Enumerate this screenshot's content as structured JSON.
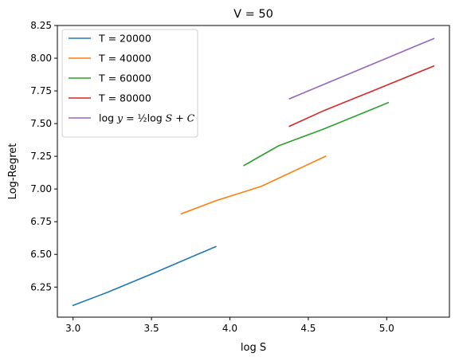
{
  "chart_data": {
    "type": "line",
    "title": "V = 50",
    "xlabel": "log S",
    "ylabel": "Log-Regret",
    "xlim": [
      2.9,
      5.4
    ],
    "ylim": [
      6.02,
      8.25
    ],
    "xticks": [
      3.0,
      3.5,
      4.0,
      4.5,
      5.0
    ],
    "xtick_labels": [
      "3.0",
      "3.5",
      "4.0",
      "4.5",
      "5.0"
    ],
    "yticks": [
      6.25,
      6.5,
      6.75,
      7.0,
      7.25,
      7.5,
      7.75,
      8.0,
      8.25
    ],
    "ytick_labels": [
      "6.25",
      "6.50",
      "6.75",
      "7.00",
      "7.25",
      "7.50",
      "7.75",
      "8.00",
      "8.25"
    ],
    "grid": false,
    "legend_position": "upper-left",
    "series": [
      {
        "name": "T = 20000",
        "color": "#1f77b4",
        "x": [
          3.0,
          3.22,
          3.52,
          3.91
        ],
        "y": [
          6.11,
          6.21,
          6.36,
          6.56
        ]
      },
      {
        "name": "T = 40000",
        "color": "#ff7f0e",
        "x": [
          3.69,
          3.91,
          4.2,
          4.61
        ],
        "y": [
          6.81,
          6.91,
          7.02,
          7.25
        ]
      },
      {
        "name": "T = 60000",
        "color": "#2ca02c",
        "x": [
          4.09,
          4.31,
          4.6,
          5.01
        ],
        "y": [
          7.18,
          7.33,
          7.46,
          7.66
        ]
      },
      {
        "name": "T = 80000",
        "color": "#d62728",
        "x": [
          4.38,
          4.6,
          4.89,
          5.3
        ],
        "y": [
          7.48,
          7.6,
          7.74,
          7.94
        ]
      },
      {
        "name": "log y = 1/2 log S + C",
        "color": "#9467bd",
        "x": [
          4.38,
          5.3
        ],
        "y": [
          7.69,
          8.15
        ]
      }
    ]
  }
}
